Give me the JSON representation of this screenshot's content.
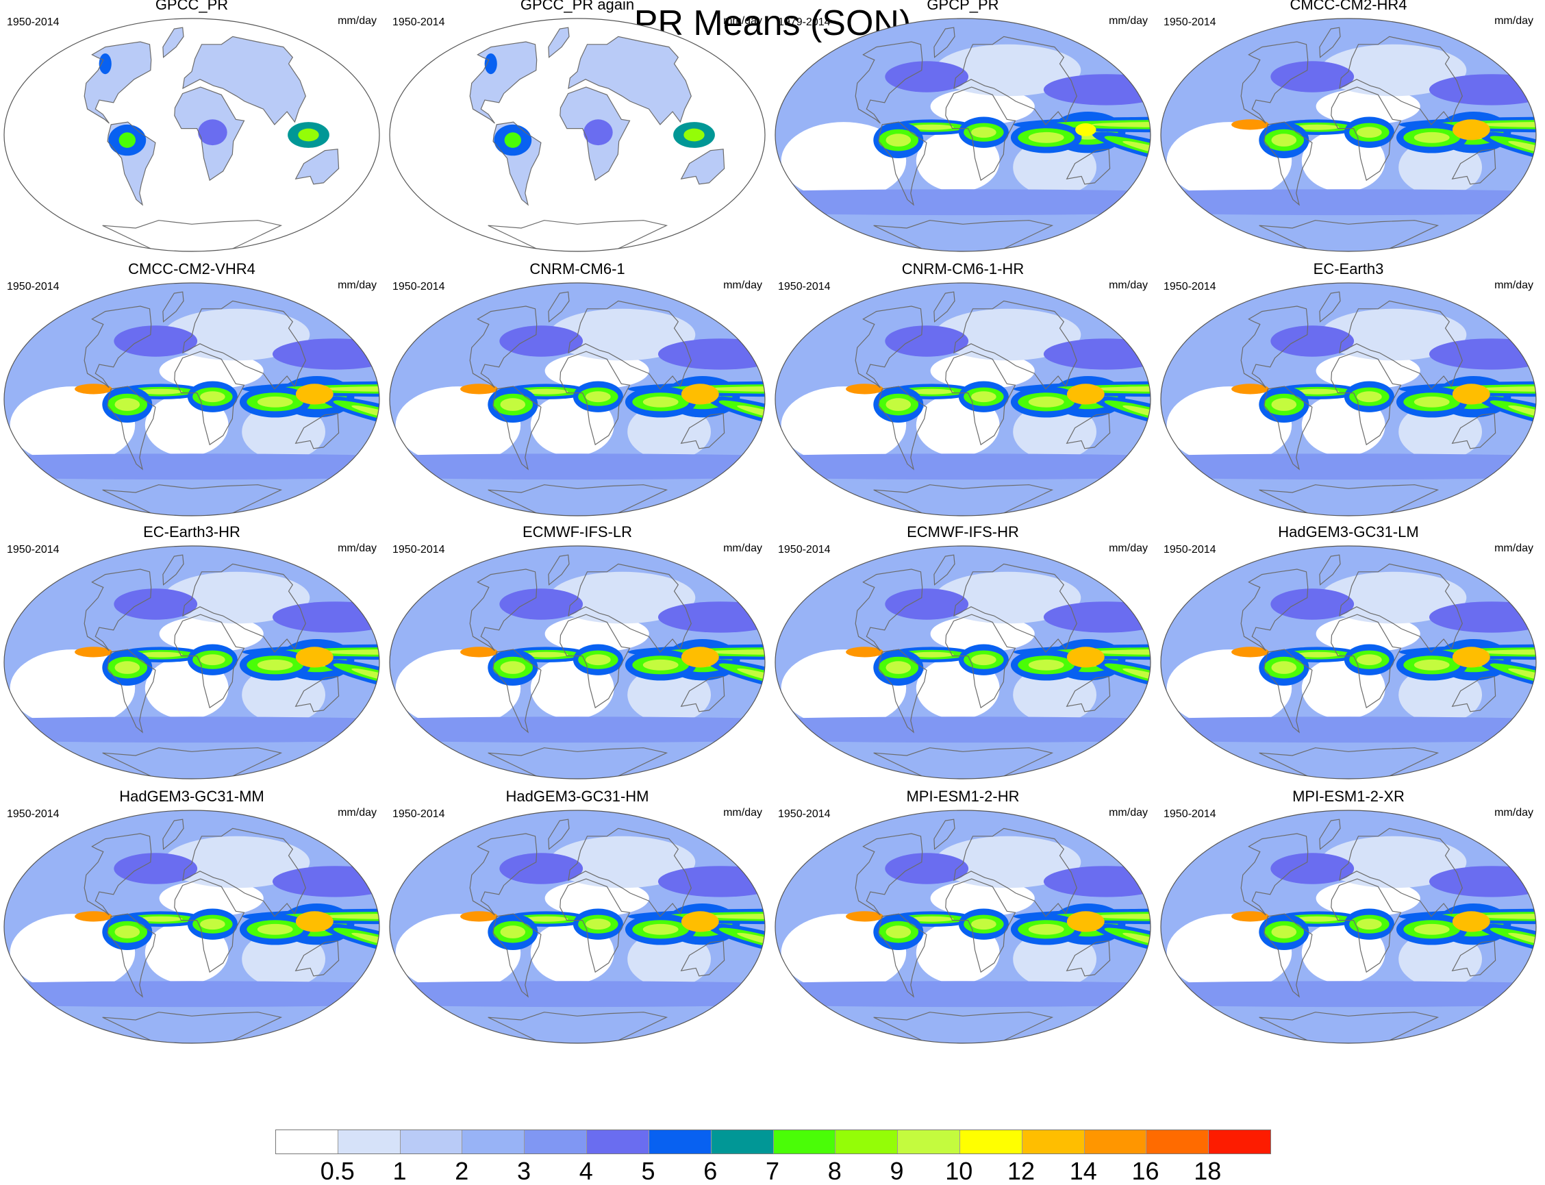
{
  "figure": {
    "title": "PR Means (SON)"
  },
  "panels": [
    {
      "title": "GPCC_PR",
      "period": "1950-2014",
      "units": "mm/day",
      "style": "land"
    },
    {
      "title": "GPCC_PR again",
      "period": "1950-2014",
      "units": "mm/day",
      "style": "land"
    },
    {
      "title": "GPCP_PR",
      "period": "1979-2014",
      "units": "mm/day",
      "style": "obs"
    },
    {
      "title": "CMCC-CM2-HR4",
      "period": "1950-2014",
      "units": "mm/day",
      "style": "model"
    },
    {
      "title": "CMCC-CM2-VHR4",
      "period": "1950-2014",
      "units": "mm/day",
      "style": "model"
    },
    {
      "title": "CNRM-CM6-1",
      "period": "1950-2014",
      "units": "mm/day",
      "style": "model"
    },
    {
      "title": "CNRM-CM6-1-HR",
      "period": "1950-2014",
      "units": "mm/day",
      "style": "model"
    },
    {
      "title": "EC-Earth3",
      "period": "1950-2014",
      "units": "mm/day",
      "style": "model"
    },
    {
      "title": "EC-Earth3-HR",
      "period": "1950-2014",
      "units": "mm/day",
      "style": "model"
    },
    {
      "title": "ECMWF-IFS-LR",
      "period": "1950-2014",
      "units": "mm/day",
      "style": "model"
    },
    {
      "title": "ECMWF-IFS-HR",
      "period": "1950-2014",
      "units": "mm/day",
      "style": "model"
    },
    {
      "title": "HadGEM3-GC31-LM",
      "period": "1950-2014",
      "units": "mm/day",
      "style": "model"
    },
    {
      "title": "HadGEM3-GC31-MM",
      "period": "1950-2014",
      "units": "mm/day",
      "style": "model"
    },
    {
      "title": "HadGEM3-GC31-HM",
      "period": "1950-2014",
      "units": "mm/day",
      "style": "model"
    },
    {
      "title": "MPI-ESM1-2-HR",
      "period": "1950-2014",
      "units": "mm/day",
      "style": "model"
    },
    {
      "title": "MPI-ESM1-2-XR",
      "period": "1950-2014",
      "units": "mm/day",
      "style": "model"
    }
  ],
  "colorbar": {
    "levels": [
      "0.5",
      "1",
      "2",
      "3",
      "4",
      "5",
      "6",
      "7",
      "8",
      "9",
      "10",
      "12",
      "14",
      "16",
      "18"
    ],
    "colors": [
      "#ffffff",
      "#d6e2f9",
      "#b9cbf7",
      "#98b3f6",
      "#8097f3",
      "#6a6df0",
      "#0861f1",
      "#019796",
      "#4afd07",
      "#94fd07",
      "#c4fb3e",
      "#ffff00",
      "#ffbe00",
      "#ff9600",
      "#ff6b00",
      "#fd1c00"
    ]
  }
}
